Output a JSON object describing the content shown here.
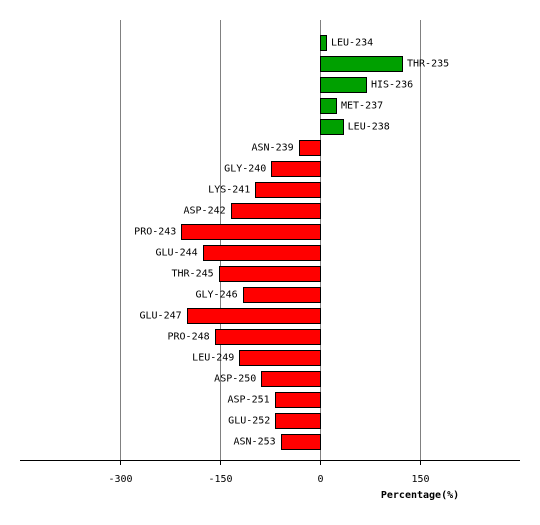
{
  "chart_data": {
    "type": "bar",
    "orientation": "horizontal",
    "title": "",
    "xlabel": "Percentage(%)",
    "ylabel": "",
    "xlim": [
      -450,
      300
    ],
    "xticks": [
      -300,
      -150,
      0,
      150
    ],
    "grid": true,
    "legend": "none",
    "colors": {
      "positive": "#00a000",
      "negative": "#ff0000",
      "grid": "#808080",
      "axis": "#000000"
    },
    "categories": [
      "LEU-234",
      "THR-235",
      "HIS-236",
      "MET-237",
      "LEU-238",
      "ASN-239",
      "GLY-240",
      "LYS-241",
      "ASP-242",
      "PRO-243",
      "GLU-244",
      "THR-245",
      "GLY-246",
      "GLU-247",
      "PRO-248",
      "LEU-249",
      "ASP-250",
      "ASP-251",
      "GLU-252",
      "ASN-253"
    ],
    "values": [
      9,
      123,
      69,
      24,
      34,
      -32,
      -73,
      -97,
      -134,
      -208,
      -176,
      -152,
      -116,
      -200,
      -158,
      -121,
      -88,
      -68,
      -67,
      -59
    ]
  }
}
